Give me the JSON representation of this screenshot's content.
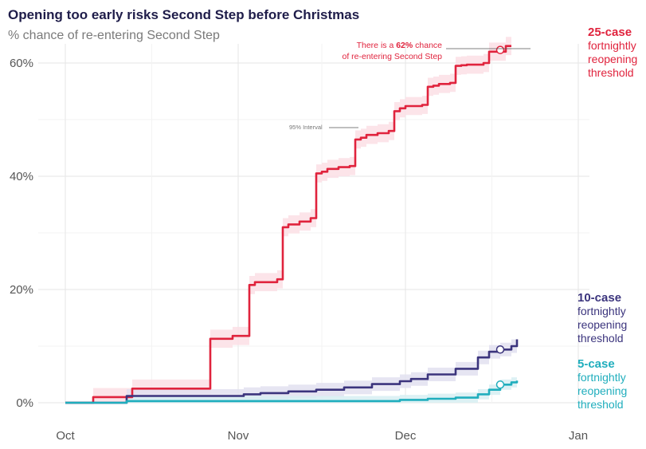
{
  "header": {
    "title": "Opening too early risks Second Step before Christmas",
    "subtitle": "% chance of re-entering Second Step"
  },
  "annotations": {
    "interval_label": "95% Interval",
    "callout_pre": "There is a ",
    "callout_bold": "62%",
    "callout_post": " chance",
    "callout_line2": "of re-entering Second Step"
  },
  "legend": {
    "s25": {
      "lead": "25-case",
      "rest": [
        "fortnightly",
        "reopening",
        "threshold"
      ]
    },
    "s10": {
      "lead": "10-case",
      "rest": [
        "fortnightly",
        "reopening",
        "threshold"
      ]
    },
    "s5": {
      "lead": "5-case",
      "rest": [
        "fortnightly",
        "reopening",
        "threshold"
      ]
    }
  },
  "chart_data": {
    "type": "line",
    "title": "Opening too early risks Second Step before Christmas",
    "subtitle": "% chance of re-entering Second Step",
    "xlabel": "",
    "ylabel": "",
    "x_tick_labels": [
      "Oct",
      "Nov",
      "Dec",
      "Jan"
    ],
    "y_tick_labels": [
      "0%",
      "20%",
      "40%",
      "60%"
    ],
    "ylim": [
      0,
      63
    ],
    "grid": true,
    "x_unit": "day of period (Oct 1 = day 0)",
    "series": [
      {
        "name": "25-case fortnightly reopening threshold",
        "color": "#e0233d",
        "band_color": "#fbdfe5",
        "points": [
          [
            0,
            0
          ],
          [
            4,
            0
          ],
          [
            5,
            1
          ],
          [
            11,
            1
          ],
          [
            12,
            2.5
          ],
          [
            25,
            2.5
          ],
          [
            26,
            11.3
          ],
          [
            30,
            11.8
          ],
          [
            32,
            11.8
          ],
          [
            33,
            20.8
          ],
          [
            34,
            21.3
          ],
          [
            38,
            21.8
          ],
          [
            39,
            31
          ],
          [
            40,
            31.5
          ],
          [
            42,
            32
          ],
          [
            44,
            32.6
          ],
          [
            45,
            40.5
          ],
          [
            46,
            40.8
          ],
          [
            47,
            41.3
          ],
          [
            49,
            41.6
          ],
          [
            51,
            41.8
          ],
          [
            52,
            46.5
          ],
          [
            53,
            46.8
          ],
          [
            54,
            47.3
          ],
          [
            56,
            47.6
          ],
          [
            58,
            48
          ],
          [
            59,
            51.5
          ],
          [
            60,
            52
          ],
          [
            61,
            52.4
          ],
          [
            64,
            52.6
          ],
          [
            65,
            55.8
          ],
          [
            66,
            56
          ],
          [
            67,
            56.3
          ],
          [
            69,
            56.5
          ],
          [
            70,
            59.5
          ],
          [
            71,
            59.6
          ],
          [
            72,
            59.7
          ],
          [
            75,
            60
          ],
          [
            76,
            62
          ],
          [
            78,
            62
          ],
          [
            79,
            63
          ],
          [
            80,
            63
          ]
        ],
        "band_halfwidth_pct": 1.6,
        "highlight": {
          "x": 78,
          "y": 62.3,
          "label": "62%"
        }
      },
      {
        "name": "10-case fortnightly reopening threshold",
        "color": "#3b347d",
        "band_color": "#e2e0f0",
        "points": [
          [
            0,
            0
          ],
          [
            10,
            0
          ],
          [
            11,
            1.2
          ],
          [
            20,
            1.2
          ],
          [
            30,
            1.2
          ],
          [
            32,
            1.5
          ],
          [
            35,
            1.7
          ],
          [
            40,
            2
          ],
          [
            45,
            2.3
          ],
          [
            50,
            2.7
          ],
          [
            55,
            3.3
          ],
          [
            60,
            3.8
          ],
          [
            62,
            4.2
          ],
          [
            65,
            5
          ],
          [
            70,
            6
          ],
          [
            74,
            8
          ],
          [
            76,
            9
          ],
          [
            78,
            9.4
          ],
          [
            80,
            10
          ],
          [
            81,
            11.2
          ]
        ],
        "band_halfwidth_pct": 1.2,
        "highlight": {
          "x": 78,
          "y": 9.4
        }
      },
      {
        "name": "5-case fortnightly reopening threshold",
        "color": "#20aebd",
        "band_color": "#d7eff2",
        "points": [
          [
            0,
            0
          ],
          [
            10,
            0
          ],
          [
            11,
            0.3
          ],
          [
            50,
            0.3
          ],
          [
            60,
            0.5
          ],
          [
            65,
            0.7
          ],
          [
            70,
            0.9
          ],
          [
            74,
            1.5
          ],
          [
            76,
            2.3
          ],
          [
            78,
            3.2
          ],
          [
            80,
            3.6
          ],
          [
            81,
            3.9
          ]
        ],
        "band_halfwidth_pct": 0.9,
        "highlight": {
          "x": 78,
          "y": 3.2
        }
      }
    ]
  }
}
